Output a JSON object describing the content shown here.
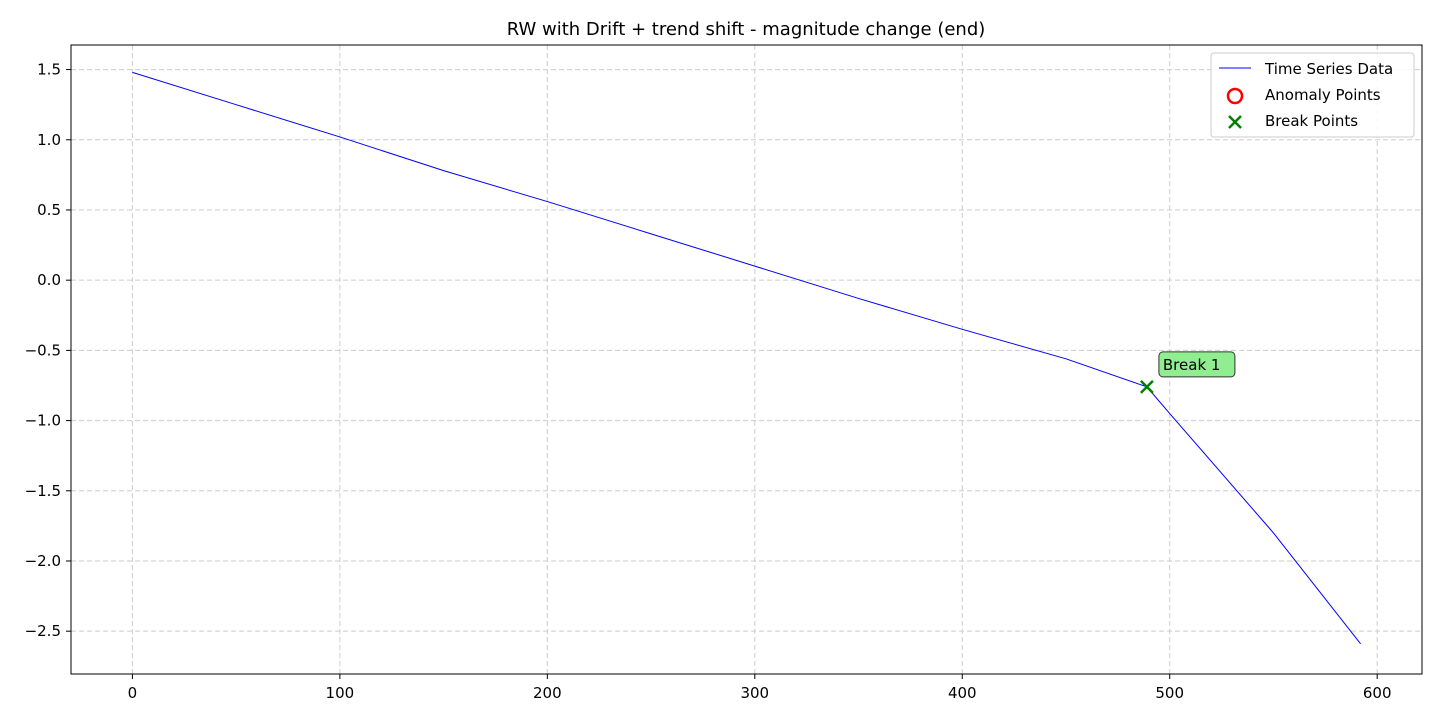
{
  "chart_data": {
    "type": "line",
    "title": "RW with Drift + trend shift - magnitude change (end)",
    "xlabel": "",
    "ylabel": "",
    "xlim": [
      -29.6,
      621.6
    ],
    "ylim": [
      -2.805,
      1.675
    ],
    "xticks": [
      0,
      100,
      200,
      300,
      400,
      500,
      600
    ],
    "xtick_labels": [
      "0",
      "100",
      "200",
      "300",
      "400",
      "500",
      "600"
    ],
    "yticks": [
      1.5,
      1.0,
      0.5,
      0.0,
      -0.5,
      -1.0,
      -1.5,
      -2.0,
      -2.5
    ],
    "ytick_labels": [
      "1.5",
      "1.0",
      "0.5",
      "0.0",
      "−0.5",
      "−1.0",
      "−1.5",
      "−2.0",
      "−2.5"
    ],
    "grid": true,
    "legend_position": "top-right",
    "legend": [
      "Time Series Data",
      "Anomaly Points",
      "Break Points"
    ],
    "series": [
      {
        "name": "Time Series Data",
        "color": "#0000ff",
        "x": [
          0,
          50,
          100,
          150,
          200,
          250,
          300,
          350,
          400,
          450,
          489,
          500,
          550,
          592
        ],
        "y": [
          1.48,
          1.25,
          1.02,
          0.78,
          0.56,
          0.33,
          0.1,
          -0.13,
          -0.35,
          -0.56,
          -0.76,
          -0.95,
          -1.8,
          -2.59
        ]
      },
      {
        "name": "Anomaly Points",
        "color": "#ff0000",
        "x": [],
        "y": []
      },
      {
        "name": "Break Points",
        "color": "#008000",
        "x": [
          489
        ],
        "y": [
          -0.76
        ]
      }
    ],
    "annotations": [
      {
        "text": "Break 1",
        "x": 489,
        "y": -0.76,
        "facecolor": "#90ee90"
      }
    ]
  }
}
